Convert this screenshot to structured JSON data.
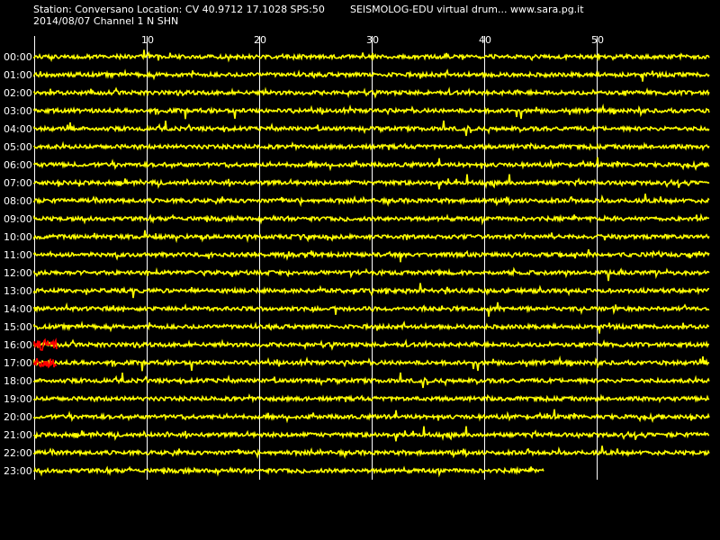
{
  "header": {
    "station_line": "Station: Conversano Location: CV 40.9712 17.1028 SPS:50",
    "date_channel_line": "2014/08/07  Channel 1 N SHN",
    "brand_line": "SEISMOLOG-EDU virtual drum... www.sara.pg.it"
  },
  "colors": {
    "background": "#000000",
    "trace": "#ffff00",
    "event": "#ff0000",
    "gridline": "#ffffff",
    "text": "#ffffff"
  },
  "chart_data": {
    "type": "line",
    "title": "",
    "xlabel": "",
    "ylabel": "",
    "x_unit": "minutes",
    "xlim": [
      0,
      60
    ],
    "x_ticks": [
      10,
      20,
      30,
      40,
      50
    ],
    "grid": true,
    "rows": [
      {
        "label": "00:00",
        "end_minute": 60
      },
      {
        "label": "01:00",
        "end_minute": 60
      },
      {
        "label": "02:00",
        "end_minute": 60
      },
      {
        "label": "03:00",
        "end_minute": 60
      },
      {
        "label": "04:00",
        "end_minute": 60
      },
      {
        "label": "05:00",
        "end_minute": 60
      },
      {
        "label": "06:00",
        "end_minute": 60
      },
      {
        "label": "07:00",
        "end_minute": 60
      },
      {
        "label": "08:00",
        "end_minute": 60
      },
      {
        "label": "09:00",
        "end_minute": 60
      },
      {
        "label": "10:00",
        "end_minute": 60
      },
      {
        "label": "11:00",
        "end_minute": 60
      },
      {
        "label": "12:00",
        "end_minute": 60
      },
      {
        "label": "13:00",
        "end_minute": 60
      },
      {
        "label": "14:00",
        "end_minute": 60
      },
      {
        "label": "15:00",
        "end_minute": 60
      },
      {
        "label": "16:00",
        "end_minute": 60
      },
      {
        "label": "17:00",
        "end_minute": 60
      },
      {
        "label": "18:00",
        "end_minute": 60
      },
      {
        "label": "19:00",
        "end_minute": 60
      },
      {
        "label": "20:00",
        "end_minute": 60
      },
      {
        "label": "21:00",
        "end_minute": 60
      },
      {
        "label": "22:00",
        "end_minute": 60
      },
      {
        "label": "23:00",
        "end_minute": 45.3
      }
    ],
    "events": [
      {
        "row": "16:00",
        "start_minute": 0,
        "end_minute": 2
      },
      {
        "row": "17:00",
        "start_minute": 0,
        "end_minute": 2
      }
    ]
  }
}
